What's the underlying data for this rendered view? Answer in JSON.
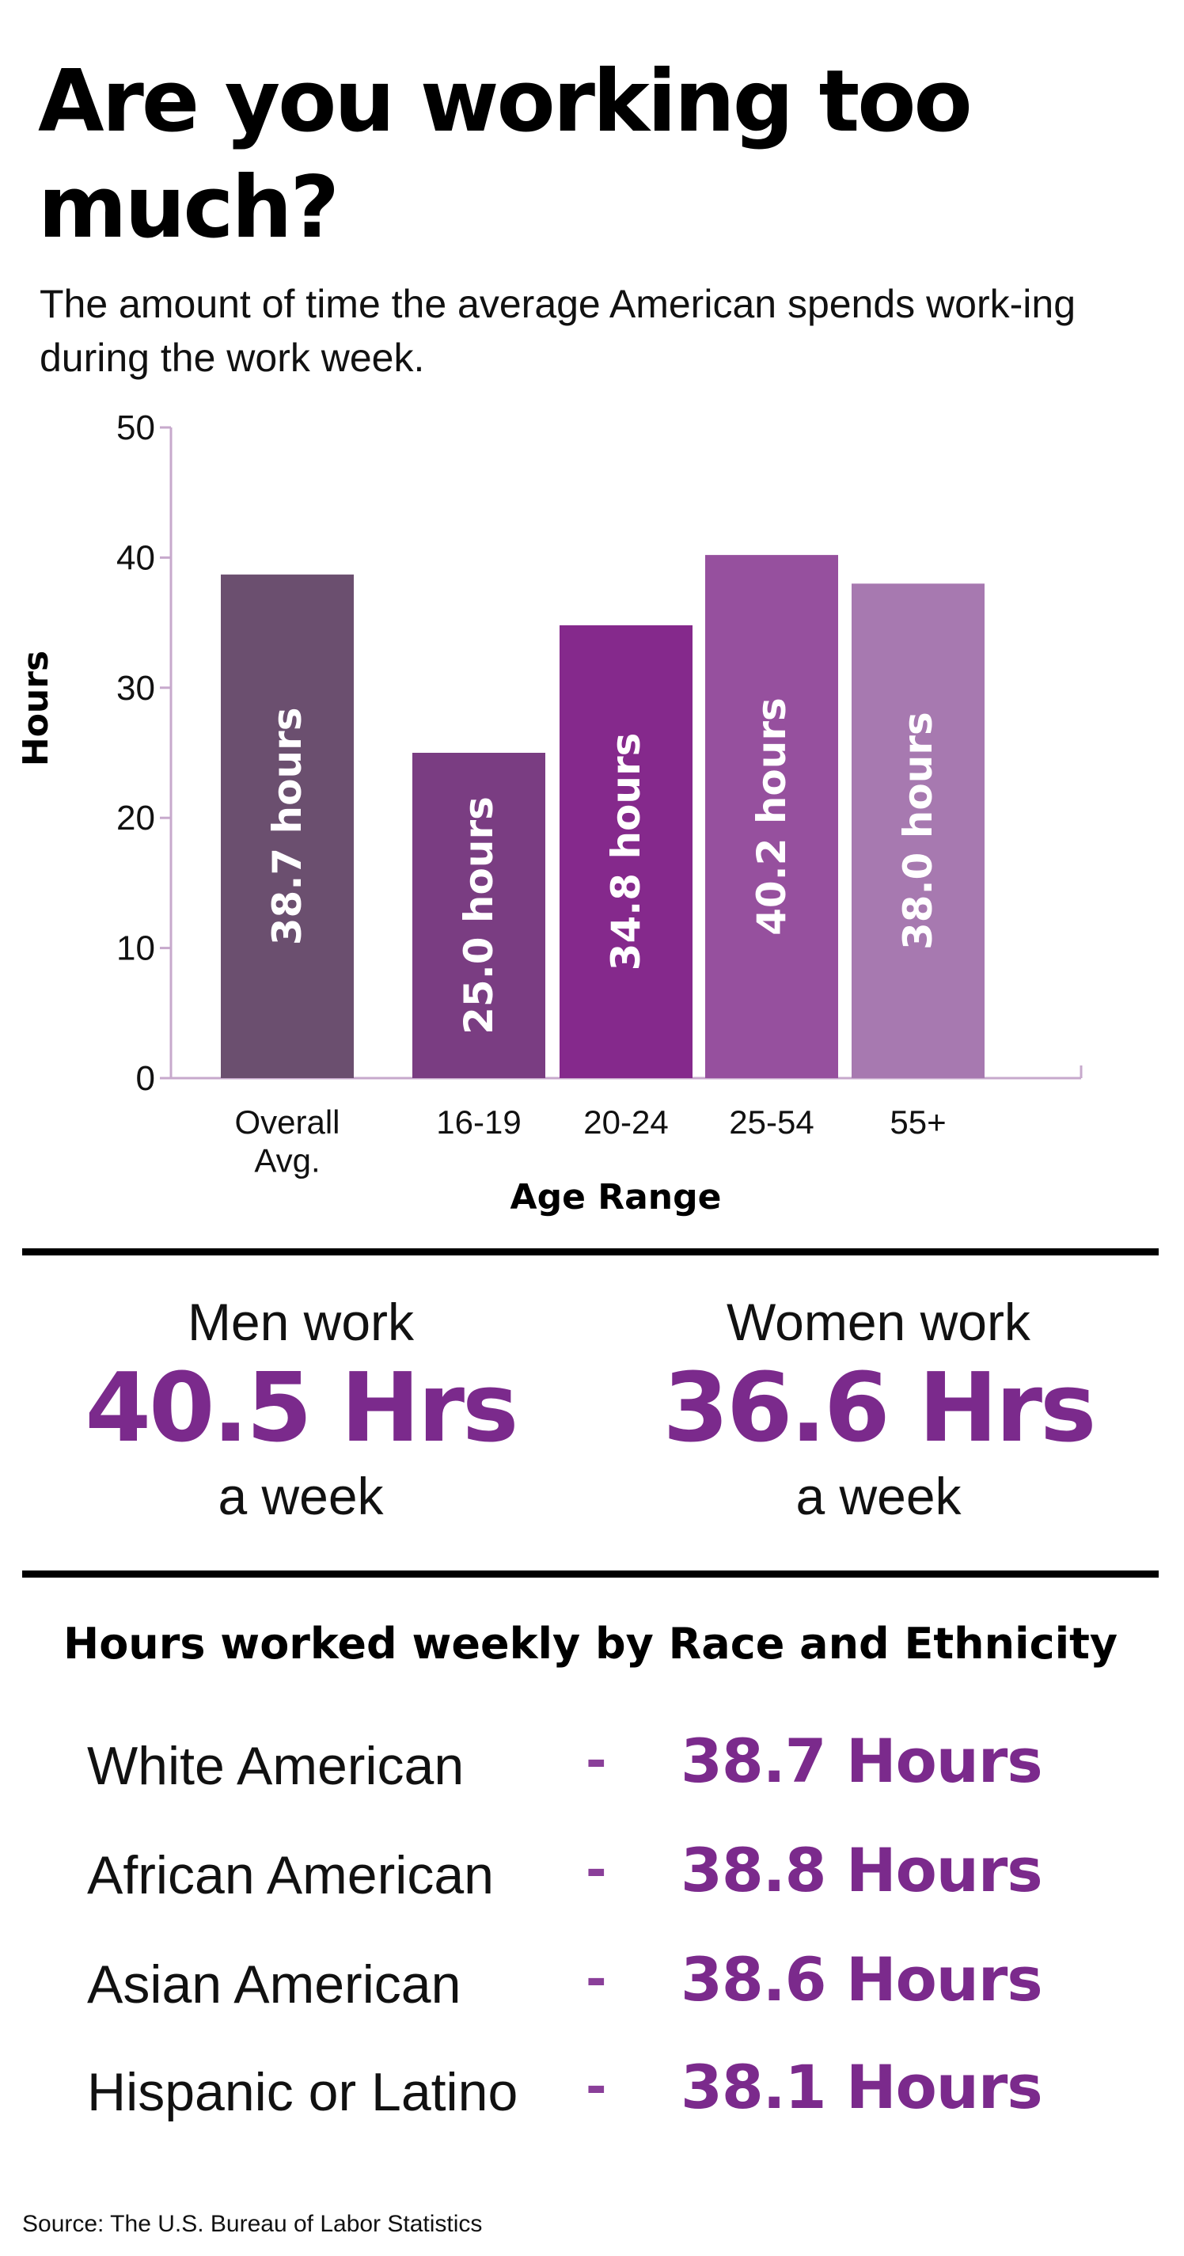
{
  "title": "Are you working too much?",
  "subtitle": "The amount of time the average American spends work-ing during the work week.",
  "chart_data": {
    "type": "bar",
    "categories": [
      "Overall Avg.",
      "16-19",
      "20-24",
      "25-54",
      "55+"
    ],
    "values": [
      38.7,
      25.0,
      34.8,
      40.2,
      38.0
    ],
    "bar_labels": [
      "38.7 hours",
      "25.0 hours",
      "34.8 hours",
      "40.2 hours",
      "38.0 hours"
    ],
    "colors": [
      "#6b4f6f",
      "#7a3d82",
      "#85298c",
      "#96509e",
      "#a779b0"
    ],
    "xlabel": "Age Range",
    "ylabel": "Hours",
    "ylim": [
      0,
      50
    ],
    "yticks": [
      0,
      10,
      20,
      30,
      40,
      50
    ],
    "grid": false,
    "axis_color": "#c7a9cc"
  },
  "gender": {
    "men": {
      "lead": "Men work",
      "value": "40.5 Hrs",
      "tail": "a week"
    },
    "women": {
      "lead": "Women work",
      "value": "36.6 Hrs",
      "tail": "a week"
    }
  },
  "race": {
    "heading": "Hours worked weekly by Race and Ethnicity",
    "dash": "-",
    "rows": [
      {
        "name": "White American",
        "value": "38.7 Hours"
      },
      {
        "name": "African American",
        "value": "38.8 Hours"
      },
      {
        "name": "Asian American",
        "value": "38.6 Hours"
      },
      {
        "name": "Hispanic or Latino",
        "value": "38.1 Hours"
      }
    ]
  },
  "source": "Source: The U.S. Bureau of Labor Statistics",
  "colors": {
    "accent": "#7b2a8c",
    "rule": "#000000"
  }
}
